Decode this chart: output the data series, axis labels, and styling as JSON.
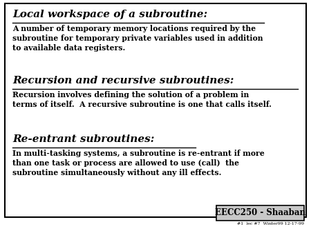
{
  "bg_color": "#ffffff",
  "border_color": "#000000",
  "text_color": "#000000",
  "heading1": "Local workspace of a subroutine:",
  "body1": "A number of temporary memory locations required by the\nsubroutine for temporary private variables used in addition\nto available data registers.",
  "heading2": "Recursion and recursive subroutines:",
  "body2": "Recursion involves defining the solution of a problem in\nterms of itself.  A recursive subroutine is one that calls itself.",
  "heading3": "Re-entrant subroutines:",
  "body3": "In multi-tasking systems, a subroutine is re-entrant if more\nthan one task or process are allowed to use (call)  the\nsubroutine simultaneously without any ill effects.",
  "footer_label": "EECC250 - Shaaban",
  "footer_small": "#1  lec #7  Winter99 12-17-99",
  "heading_fontsize": 11.0,
  "body_fontsize": 7.8,
  "footer_fontsize": 8.5,
  "small_fontsize": 4.5,
  "border_lw": 1.5,
  "underline_lw": 1.0,
  "footer_gray": "#c8c8c8"
}
